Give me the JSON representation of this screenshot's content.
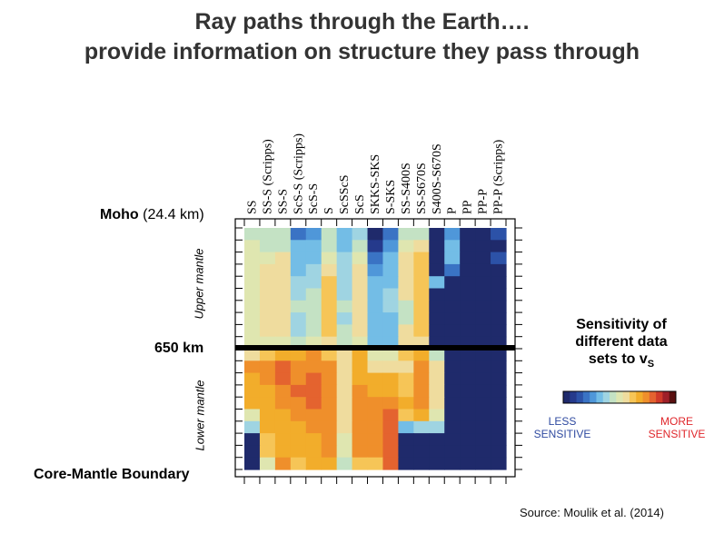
{
  "title": {
    "line1": "Ray paths through the Earth….",
    "line2": "provide information on structure they pass through"
  },
  "depth_labels": {
    "moho_bold": "Moho",
    "moho_value": "(24.4 km)",
    "km650": "650 km",
    "cmb": "Core-Mantle Boundary",
    "upper": "Upper mantle",
    "lower": "Lower mantle"
  },
  "legend": {
    "title_line1": "Sensitivity of",
    "title_line2": "different data",
    "title_line3": "sets to v",
    "title_sub": "S",
    "less": "LESS\nSENSITIVE",
    "more": "MORE\nSENSITIVE",
    "colors": [
      "#1f2a6b",
      "#253a8c",
      "#2c52a8",
      "#3a73c4",
      "#4f97d9",
      "#73bde6",
      "#9fd4e2",
      "#c4e2c4",
      "#dfe6b0",
      "#efdc9e",
      "#f6c557",
      "#f2ad2b",
      "#ef8f2b",
      "#e4632f",
      "#cf3a29",
      "#9e2028",
      "#5a1010"
    ]
  },
  "source": "Source: Moulik et al. (2014)",
  "chart_data": {
    "type": "heatmap",
    "title": "",
    "x_categories": [
      "SS",
      "SS-S (Scripps)",
      "SS-S",
      "ScS-S (Scripps)",
      "ScS-S",
      "S",
      "ScSScS",
      "ScS",
      "SKKS-SKS",
      "S-SKS",
      "SS-S400S",
      "SS-S670S",
      "S400S-S670S",
      "P",
      "PP",
      "PP-P",
      "PP-P (Scripps)"
    ],
    "y_layers": 20,
    "y_top": "Moho (24.4 km)",
    "y_boundary": "650 km",
    "y_boundary_after_layer": 10,
    "y_bottom": "Core-Mantle Boundary",
    "value_range": [
      0,
      16
    ],
    "value_meaning": "sensitivity index: 0 = less sensitive (dark blue), 16 = more sensitive (dark red)",
    "grid": false,
    "legend_position": "right",
    "rows": [
      [
        7,
        7,
        7,
        3,
        4,
        7,
        5,
        6,
        0,
        3,
        7,
        7,
        0,
        4,
        0,
        0,
        2
      ],
      [
        8,
        7,
        7,
        5,
        5,
        7,
        5,
        7,
        1,
        4,
        8,
        9,
        0,
        5,
        0,
        0,
        0
      ],
      [
        8,
        8,
        9,
        5,
        5,
        8,
        6,
        8,
        3,
        5,
        9,
        10,
        0,
        5,
        0,
        0,
        2
      ],
      [
        8,
        9,
        9,
        5,
        6,
        9,
        6,
        9,
        4,
        5,
        9,
        10,
        0,
        3,
        0,
        0,
        0
      ],
      [
        8,
        9,
        9,
        6,
        6,
        10,
        6,
        9,
        5,
        5,
        9,
        10,
        5,
        0,
        0,
        0,
        0
      ],
      [
        8,
        9,
        9,
        6,
        7,
        10,
        6,
        9,
        5,
        6,
        9,
        10,
        0,
        0,
        0,
        0,
        0
      ],
      [
        8,
        9,
        9,
        7,
        7,
        10,
        7,
        9,
        5,
        6,
        7,
        10,
        0,
        0,
        0,
        0,
        0
      ],
      [
        8,
        9,
        9,
        6,
        7,
        10,
        6,
        9,
        5,
        5,
        7,
        10,
        0,
        0,
        0,
        0,
        0
      ],
      [
        8,
        9,
        9,
        6,
        7,
        10,
        7,
        9,
        5,
        5,
        9,
        10,
        0,
        0,
        0,
        0,
        0
      ],
      [
        8,
        8,
        8,
        7,
        8,
        9,
        7,
        8,
        5,
        5,
        9,
        9,
        0,
        0,
        0,
        0,
        0
      ],
      [
        9,
        10,
        11,
        11,
        12,
        10,
        9,
        11,
        8,
        8,
        10,
        11,
        7,
        0,
        0,
        0,
        0
      ],
      [
        12,
        12,
        13,
        12,
        12,
        12,
        9,
        11,
        9,
        9,
        9,
        12,
        9,
        0,
        0,
        0,
        0
      ],
      [
        11,
        12,
        13,
        12,
        13,
        12,
        9,
        11,
        11,
        11,
        10,
        12,
        9,
        0,
        0,
        0,
        0
      ],
      [
        11,
        11,
        12,
        13,
        13,
        12,
        9,
        12,
        11,
        11,
        10,
        12,
        9,
        0,
        0,
        0,
        0
      ],
      [
        11,
        11,
        12,
        12,
        13,
        12,
        9,
        12,
        12,
        12,
        11,
        12,
        9,
        0,
        0,
        0,
        0
      ],
      [
        8,
        11,
        11,
        12,
        12,
        12,
        9,
        12,
        12,
        13,
        10,
        11,
        8,
        0,
        0,
        0,
        0
      ],
      [
        6,
        11,
        11,
        11,
        12,
        12,
        9,
        12,
        12,
        13,
        5,
        6,
        6,
        0,
        0,
        0,
        0
      ],
      [
        0,
        10,
        11,
        11,
        11,
        12,
        8,
        12,
        12,
        13,
        0,
        0,
        0,
        0,
        0,
        0,
        0
      ],
      [
        0,
        10,
        11,
        11,
        11,
        12,
        8,
        12,
        12,
        13,
        0,
        0,
        0,
        0,
        0,
        0,
        0
      ],
      [
        0,
        8,
        12,
        10,
        11,
        11,
        7,
        10,
        10,
        13,
        0,
        0,
        0,
        0,
        0,
        0,
        0
      ]
    ]
  }
}
